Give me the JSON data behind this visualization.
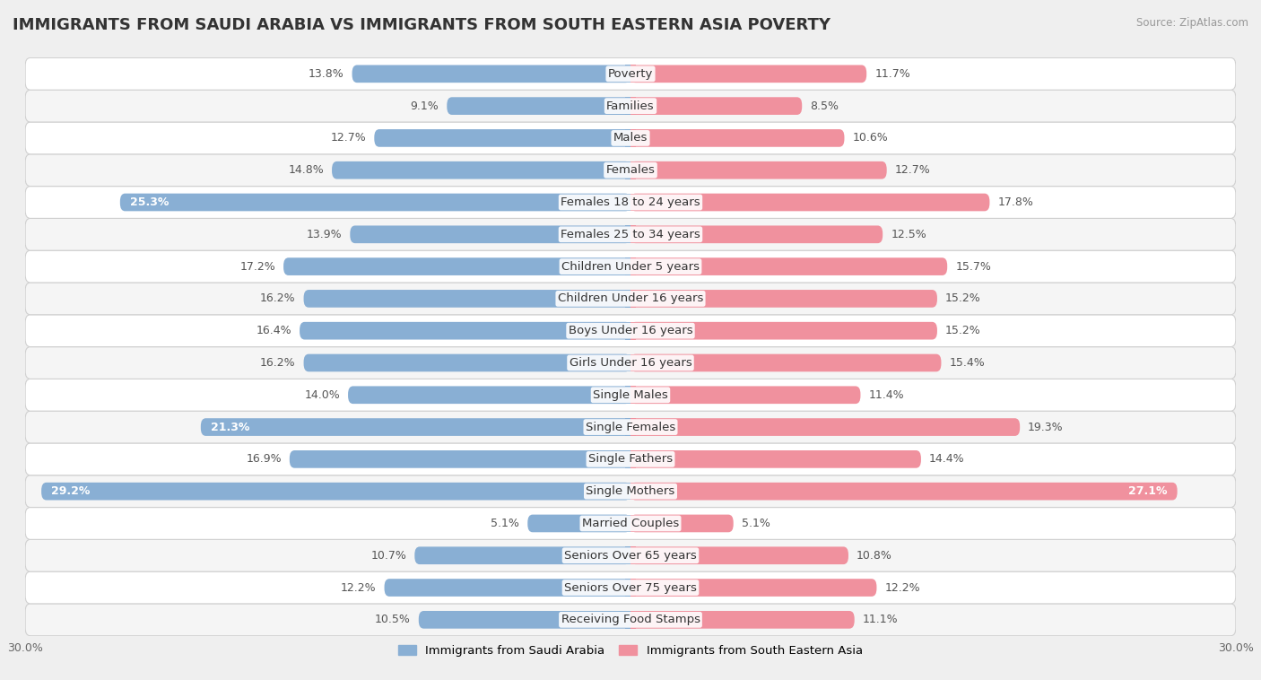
{
  "title": "IMMIGRANTS FROM SAUDI ARABIA VS IMMIGRANTS FROM SOUTH EASTERN ASIA POVERTY",
  "source": "Source: ZipAtlas.com",
  "categories": [
    "Poverty",
    "Families",
    "Males",
    "Females",
    "Females 18 to 24 years",
    "Females 25 to 34 years",
    "Children Under 5 years",
    "Children Under 16 years",
    "Boys Under 16 years",
    "Girls Under 16 years",
    "Single Males",
    "Single Females",
    "Single Fathers",
    "Single Mothers",
    "Married Couples",
    "Seniors Over 65 years",
    "Seniors Over 75 years",
    "Receiving Food Stamps"
  ],
  "saudi_values": [
    13.8,
    9.1,
    12.7,
    14.8,
    25.3,
    13.9,
    17.2,
    16.2,
    16.4,
    16.2,
    14.0,
    21.3,
    16.9,
    29.2,
    5.1,
    10.7,
    12.2,
    10.5
  ],
  "sea_values": [
    11.7,
    8.5,
    10.6,
    12.7,
    17.8,
    12.5,
    15.7,
    15.2,
    15.2,
    15.4,
    11.4,
    19.3,
    14.4,
    27.1,
    5.1,
    10.8,
    12.2,
    11.1
  ],
  "saudi_color": "#89afd4",
  "sea_color": "#f0919e",
  "bar_height": 0.55,
  "xlim": 30.0,
  "legend_label_saudi": "Immigrants from Saudi Arabia",
  "legend_label_sea": "Immigrants from South Eastern Asia",
  "bg_color": "#efefef",
  "row_bg_even": "#ffffff",
  "row_bg_odd": "#f5f5f5",
  "title_fontsize": 13,
  "label_fontsize": 9.5,
  "value_fontsize": 9,
  "axis_tick_fontsize": 9,
  "large_bar_threshold": 20
}
